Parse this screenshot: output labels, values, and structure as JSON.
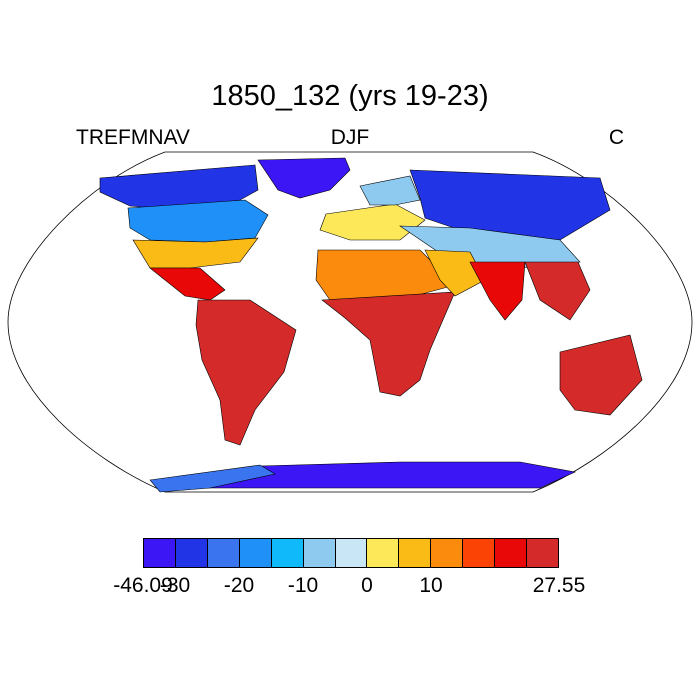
{
  "title": "1850_132 (yrs 19-23)",
  "labels": {
    "left": "TREFMNAV",
    "center": "DJF",
    "right": "C"
  },
  "colorbar": {
    "colors": [
      "#3c16f5",
      "#2134e6",
      "#3a74ef",
      "#1f90f7",
      "#10b9f9",
      "#8ec9ef",
      "#c8e6f6",
      "#fde85a",
      "#fbbb17",
      "#fb8b0c",
      "#fa4304",
      "#e80808",
      "#d42a2a"
    ],
    "ticks": [
      {
        "text": "-46.09",
        "index": 0
      },
      {
        "text": "-30",
        "index": 1
      },
      {
        "text": "-20",
        "index": 3
      },
      {
        "text": "-10",
        "index": 5
      },
      {
        "text": "0",
        "index": 7
      },
      {
        "text": "10",
        "index": 9
      },
      {
        "text": "27.55",
        "index": 13
      }
    ]
  },
  "map": {
    "projection": "Robinson",
    "regions": [
      {
        "name": "greenland",
        "color": "#3c16f5"
      },
      {
        "name": "north-america-arctic",
        "color": "#2134e6"
      },
      {
        "name": "north-america-central",
        "color": "#1f90f7"
      },
      {
        "name": "north-america-south",
        "color": "#fbbb17"
      },
      {
        "name": "central-america",
        "color": "#e80808"
      },
      {
        "name": "south-america",
        "color": "#d42a2a"
      },
      {
        "name": "europe",
        "color": "#fde85a"
      },
      {
        "name": "scandinavia",
        "color": "#8ec9ef"
      },
      {
        "name": "siberia",
        "color": "#2134e6"
      },
      {
        "name": "central-asia",
        "color": "#8ec9ef"
      },
      {
        "name": "north-africa",
        "color": "#fb8b0c"
      },
      {
        "name": "africa",
        "color": "#d42a2a"
      },
      {
        "name": "arabia",
        "color": "#fbbb17"
      },
      {
        "name": "india",
        "color": "#e80808"
      },
      {
        "name": "southeast-asia",
        "color": "#d42a2a"
      },
      {
        "name": "australia",
        "color": "#d42a2a"
      },
      {
        "name": "antarctica",
        "color": "#3c16f5"
      },
      {
        "name": "antarctica-coast",
        "color": "#3a74ef"
      }
    ]
  }
}
